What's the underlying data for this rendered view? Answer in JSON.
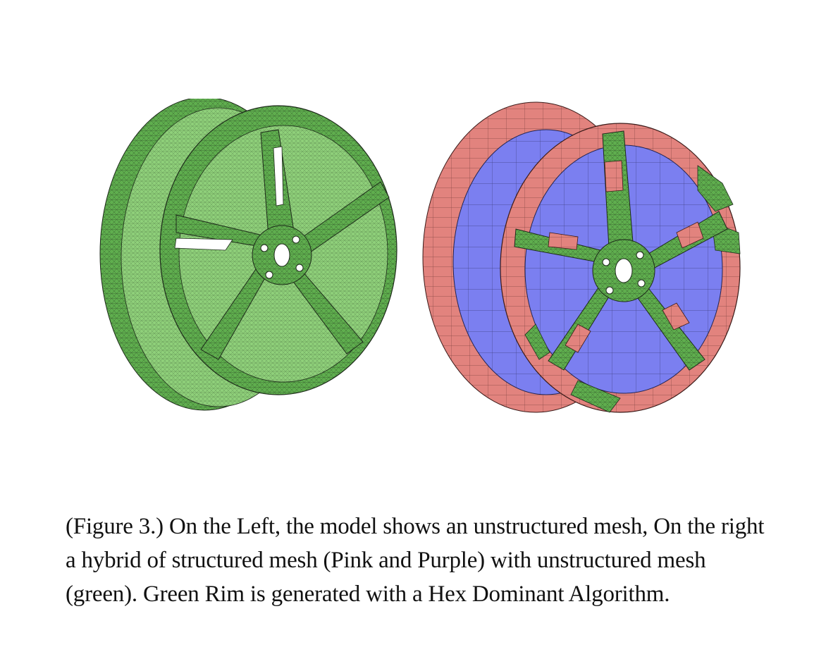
{
  "figure": {
    "colors": {
      "unstructured_green": "#5fae4e",
      "green_dark": "#2f6b2a",
      "structured_pink": "#e2837e",
      "structured_purple": "#7b7ff0",
      "mesh_line": "#1d2a1a"
    },
    "caption": "(Figure 3.) On the Left, the model shows an unstructured mesh, On the right a hybrid of structured mesh (Pink and Purple) with unstructured mesh (green). Green Rim is generated with a Hex Dominant Algorithm."
  }
}
